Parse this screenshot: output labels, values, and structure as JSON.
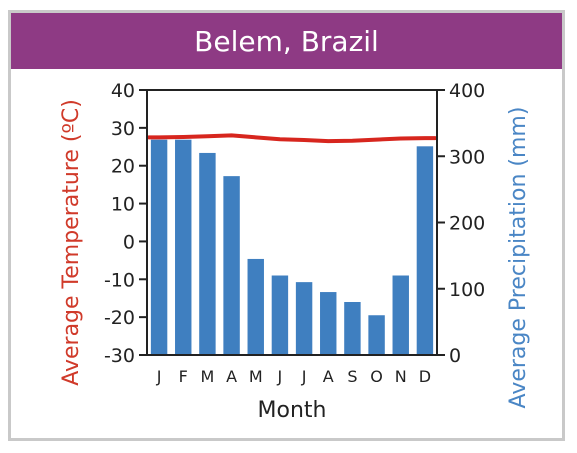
{
  "chart_data": {
    "type": "bar+line",
    "title": "Belem, Brazil",
    "xlabel": "Month",
    "y_left_label": "Average Temperature (ºC)",
    "y_right_label": "Average Precipitation (mm)",
    "categories": [
      "J",
      "F",
      "M",
      "A",
      "M",
      "J",
      "J",
      "A",
      "S",
      "O",
      "N",
      "D"
    ],
    "y_left_ticks": [
      "40",
      "30",
      "20",
      "10",
      "0",
      "-10",
      "-20",
      "-30"
    ],
    "y_right_ticks": [
      "400",
      "300",
      "200",
      "100",
      "0"
    ],
    "y_left_range": [
      -30,
      40
    ],
    "y_right_range": [
      0,
      400
    ],
    "precipitation_mm": [
      325,
      325,
      305,
      270,
      145,
      120,
      110,
      95,
      80,
      60,
      120,
      315
    ],
    "temperature_c": [
      27.5,
      27.6,
      27.8,
      28.0,
      27.5,
      27.0,
      26.8,
      26.5,
      26.6,
      26.9,
      27.2,
      27.3
    ],
    "grid": false,
    "legend": "none"
  },
  "colors": {
    "header": "#8e3a84",
    "bars": "#3f7fc0",
    "temperature_line": "#d7261e",
    "temperature_label": "#d03a2a",
    "precipitation_label": "#4a86c5",
    "frame": "#c9c9c9"
  }
}
